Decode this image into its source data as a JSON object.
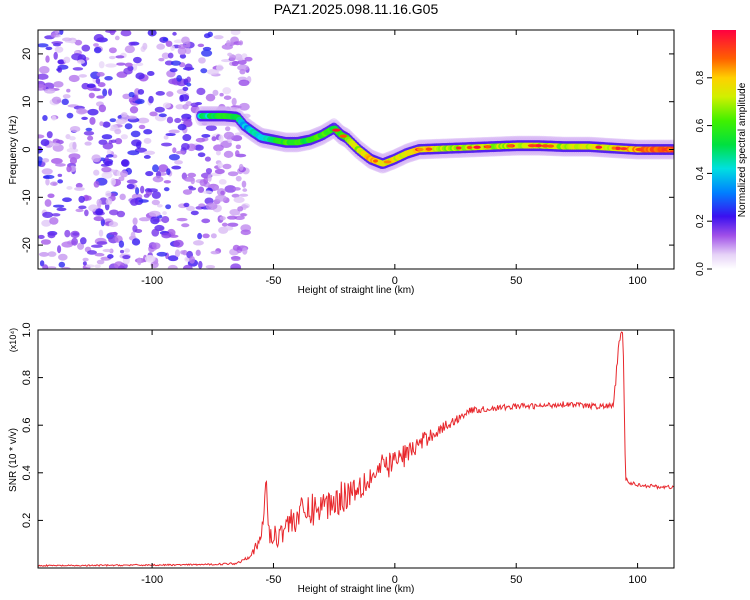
{
  "title": "PAZ1.2025.098.11.16.G05",
  "chart_data": [
    {
      "type": "heatmap",
      "xlabel": "Height of straight line (km)",
      "ylabel": "Frequency (Hz)",
      "xlim": [
        -147,
        115
      ],
      "ylim": [
        -25,
        25
      ],
      "xticks": [
        -100,
        -50,
        0,
        50,
        100
      ],
      "yticks": [
        -20,
        -10,
        0,
        10,
        20
      ],
      "colorbar": {
        "label": "Normalized spectral amplitude",
        "range": [
          0,
          1
        ],
        "ticks": [
          0.0,
          0.2,
          0.4,
          0.6,
          0.8
        ]
      },
      "ridge": {
        "x": [
          -80,
          -75,
          -70,
          -65,
          -62,
          -58,
          -55,
          -50,
          -45,
          -40,
          -35,
          -30,
          -25,
          -22,
          -20,
          -15,
          -10,
          -5,
          0,
          5,
          10,
          20,
          30,
          40,
          50,
          60,
          70,
          80,
          90,
          100,
          110,
          115
        ],
        "y": [
          7,
          7,
          7,
          6.8,
          5,
          3.5,
          2.5,
          2,
          1.5,
          1.5,
          2,
          3,
          4.5,
          3,
          2.5,
          0,
          -2,
          -3,
          -2,
          -0.8,
          0,
          0.2,
          0.4,
          0.6,
          0.8,
          0.8,
          0.6,
          0.6,
          0.3,
          0,
          0,
          0
        ],
        "amplitude": [
          0.45,
          0.5,
          0.55,
          0.5,
          0.35,
          0.45,
          0.4,
          0.55,
          0.6,
          0.6,
          0.55,
          0.6,
          0.55,
          0.6,
          0.65,
          0.7,
          0.8,
          0.75,
          0.75,
          0.75,
          0.8,
          0.7,
          0.7,
          0.7,
          0.72,
          0.72,
          0.7,
          0.72,
          0.75,
          0.82,
          0.9,
          0.9
        ]
      },
      "noise": {
        "x_range": [
          -147,
          -60
        ],
        "amplitude_range": [
          0.05,
          0.25
        ]
      }
    },
    {
      "type": "line",
      "xlabel": "Height of straight line (km)",
      "ylabel": "SNR (10 * v/v)",
      "multiplier": "(x10⁴)",
      "xlim": [
        -147,
        115
      ],
      "ylim": [
        0,
        1.0
      ],
      "xticks": [
        -100,
        -50,
        0,
        50,
        100
      ],
      "yticks": [
        0.2,
        0.4,
        0.6,
        0.8,
        1.0
      ],
      "series": [
        {
          "color": "#e8282d",
          "x": [
            -147,
            -130,
            -110,
            -90,
            -75,
            -65,
            -60,
            -56,
            -54,
            -53,
            -52,
            -50,
            -45,
            -40,
            -35,
            -30,
            -25,
            -20,
            -15,
            -10,
            -5,
            0,
            5,
            10,
            15,
            20,
            25,
            30,
            40,
            50,
            60,
            70,
            80,
            90,
            92,
            93,
            94,
            95,
            96,
            100,
            105,
            110,
            115
          ],
          "values": [
            0.01,
            0.01,
            0.012,
            0.013,
            0.015,
            0.02,
            0.05,
            0.1,
            0.2,
            0.4,
            0.15,
            0.12,
            0.18,
            0.22,
            0.24,
            0.26,
            0.28,
            0.31,
            0.35,
            0.38,
            0.42,
            0.45,
            0.48,
            0.52,
            0.56,
            0.59,
            0.62,
            0.66,
            0.67,
            0.68,
            0.68,
            0.69,
            0.68,
            0.68,
            0.9,
            0.97,
            0.99,
            0.38,
            0.36,
            0.35,
            0.345,
            0.34,
            0.34
          ],
          "noise": [
            0.003,
            0.003,
            0.003,
            0.003,
            0.003,
            0.005,
            0.01,
            0.03,
            0.04,
            0.0,
            0.05,
            0.05,
            0.06,
            0.07,
            0.07,
            0.07,
            0.07,
            0.07,
            0.07,
            0.06,
            0.06,
            0.05,
            0.05,
            0.04,
            0.03,
            0.025,
            0.02,
            0.015,
            0.012,
            0.012,
            0.012,
            0.012,
            0.012,
            0.012,
            0.03,
            0.02,
            0.01,
            0.01,
            0.008,
            0.008,
            0.008,
            0.008,
            0.008
          ]
        }
      ]
    }
  ]
}
